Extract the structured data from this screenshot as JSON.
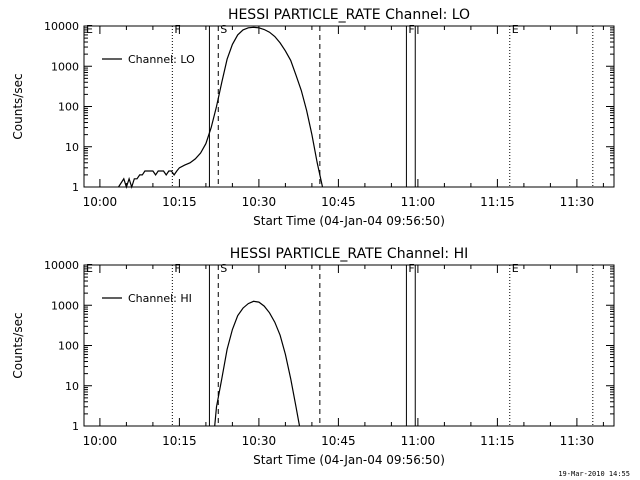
{
  "footer_timestamp": "19-Mar-2010 14:55",
  "chart_data": [
    {
      "type": "line",
      "title": "HESSI PARTICLE_RATE Channel: LO",
      "xlabel": "Start Time (04-Jan-04 09:56:50)",
      "ylabel": "Counts/sec",
      "y_scale": "log",
      "ylim": [
        1,
        10000
      ],
      "yticks": [
        1,
        10,
        100,
        1000,
        10000
      ],
      "ytick_labels": [
        "1",
        "10",
        "100",
        "1000",
        "10000"
      ],
      "xlim": [
        "09:57",
        "11:37"
      ],
      "xticks": [
        "10:00",
        "10:15",
        "10:30",
        "10:45",
        "11:00",
        "11:15",
        "11:30"
      ],
      "legend": {
        "position": "top-left",
        "entries": [
          "Channel: LO"
        ]
      },
      "series": [
        {
          "name": "Channel: LO",
          "x": [
            "10:03:30",
            "10:04:30",
            "10:05:00",
            "10:05:30",
            "10:06:00",
            "10:06:30",
            "10:07:00",
            "10:07:30",
            "10:08:00",
            "10:08:30",
            "10:09:00",
            "10:09:30",
            "10:10:00",
            "10:10:30",
            "10:11:00",
            "10:11:30",
            "10:12:00",
            "10:12:30",
            "10:13:00",
            "10:13:30",
            "10:14:00",
            "10:14:30",
            "10:15:00",
            "10:16:00",
            "10:17:00",
            "10:18:00",
            "10:19:00",
            "10:20:00",
            "10:21:00",
            "10:22:00",
            "10:23:00",
            "10:24:00",
            "10:25:00",
            "10:26:00",
            "10:27:00",
            "10:28:00",
            "10:29:00",
            "10:30:00",
            "10:31:00",
            "10:32:00",
            "10:33:00",
            "10:34:00",
            "10:35:00",
            "10:36:00",
            "10:37:00",
            "10:38:00",
            "10:39:00",
            "10:40:00",
            "10:41:00",
            "10:42:00"
          ],
          "y": [
            1,
            1.6,
            1,
            1.6,
            1,
            1.6,
            1.6,
            2,
            2,
            2.5,
            2.5,
            2.5,
            2.5,
            2,
            2.5,
            2.5,
            2.5,
            2,
            2.5,
            2.5,
            2,
            2.5,
            3,
            3.5,
            4,
            5,
            7,
            12,
            30,
            100,
            400,
            1500,
            3500,
            6000,
            8000,
            9000,
            9300,
            9000,
            8200,
            7000,
            5500,
            3800,
            2400,
            1400,
            600,
            250,
            80,
            20,
            4,
            1
          ]
        }
      ],
      "annotations": [
        {
          "label": "F",
          "x": "10:13:40",
          "style": "dotted"
        },
        {
          "label": "",
          "x": "10:20:40",
          "style": "solid"
        },
        {
          "label": "S",
          "x": "10:22:20",
          "style": "dashed"
        },
        {
          "label": "",
          "x": "10:41:30",
          "style": "dashed"
        },
        {
          "label": "F",
          "x": "10:57:50",
          "style": "solid"
        },
        {
          "label": "",
          "x": "10:59:30",
          "style": "solid"
        },
        {
          "label": "E",
          "x": "11:17:20",
          "style": "dotted"
        },
        {
          "label": "",
          "x": "11:33:00",
          "style": "dotted"
        },
        {
          "label": "E",
          "x": "09:57:00",
          "style": "none"
        }
      ]
    },
    {
      "type": "line",
      "title": "HESSI PARTICLE_RATE Channel: HI",
      "xlabel": "Start Time (04-Jan-04 09:56:50)",
      "ylabel": "Counts/sec",
      "y_scale": "log",
      "ylim": [
        1,
        10000
      ],
      "yticks": [
        1,
        10,
        100,
        1000,
        10000
      ],
      "ytick_labels": [
        "1",
        "10",
        "100",
        "1000",
        "10000"
      ],
      "xlim": [
        "09:57",
        "11:37"
      ],
      "xticks": [
        "10:00",
        "10:15",
        "10:30",
        "10:45",
        "11:00",
        "11:15",
        "11:30"
      ],
      "legend": {
        "position": "top-left",
        "entries": [
          "Channel: HI"
        ]
      },
      "series": [
        {
          "name": "Channel: HI",
          "x": [
            "10:21:40",
            "10:22:00",
            "10:23:00",
            "10:24:00",
            "10:25:00",
            "10:26:00",
            "10:27:00",
            "10:28:00",
            "10:29:00",
            "10:30:00",
            "10:31:00",
            "10:32:00",
            "10:33:00",
            "10:34:00",
            "10:35:00",
            "10:36:00",
            "10:37:00",
            "10:37:40"
          ],
          "y": [
            1,
            3,
            15,
            80,
            250,
            550,
            850,
            1100,
            1250,
            1200,
            950,
            650,
            380,
            180,
            60,
            15,
            3,
            1
          ]
        }
      ],
      "annotations": [
        {
          "label": "F",
          "x": "10:13:40",
          "style": "dotted"
        },
        {
          "label": "",
          "x": "10:20:40",
          "style": "solid"
        },
        {
          "label": "S",
          "x": "10:22:20",
          "style": "dashed"
        },
        {
          "label": "",
          "x": "10:41:30",
          "style": "dashed"
        },
        {
          "label": "F",
          "x": "10:57:50",
          "style": "solid"
        },
        {
          "label": "",
          "x": "10:59:30",
          "style": "solid"
        },
        {
          "label": "E",
          "x": "11:17:20",
          "style": "dotted"
        },
        {
          "label": "",
          "x": "11:33:00",
          "style": "dotted"
        },
        {
          "label": "E",
          "x": "09:57:00",
          "style": "none"
        }
      ]
    }
  ]
}
